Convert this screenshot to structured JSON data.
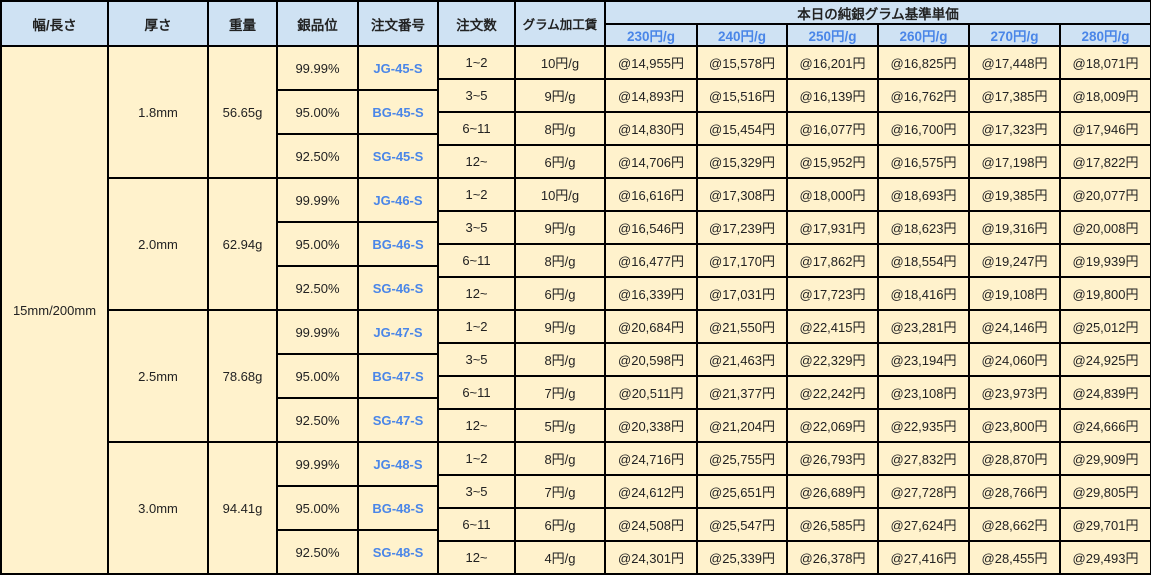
{
  "headers": {
    "width_length": "幅/長さ",
    "thickness": "厚さ",
    "weight": "重量",
    "purity": "銀品位",
    "order_no": "注文番号",
    "order_qty": "注文数",
    "gram_fee": "グラム加工賃",
    "base_price_title": "本日の純銀グラム基準単価",
    "base_prices": [
      "230円/g",
      "240円/g",
      "250円/g",
      "260円/g",
      "270円/g",
      "280円/g"
    ]
  },
  "width_length": "15mm/200mm",
  "colors": {
    "header_bg": "#cfe2f3",
    "body_bg": "#fff2cc",
    "accent_text": "#4a86e8",
    "border": "#000000"
  },
  "groups": [
    {
      "thickness": "1.8mm",
      "weight": "56.65g",
      "purities": [
        {
          "purity": "99.99%",
          "code": "JG-45-S"
        },
        {
          "purity": "95.00%",
          "code": "BG-45-S"
        },
        {
          "purity": "92.50%",
          "code": "SG-45-S"
        }
      ],
      "tiers": [
        {
          "qty": "1~2",
          "fee": "10円/g",
          "prices": [
            "@14,955円",
            "@15,578円",
            "@16,201円",
            "@16,825円",
            "@17,448円",
            "@18,071円"
          ]
        },
        {
          "qty": "3~5",
          "fee": "9円/g",
          "prices": [
            "@14,893円",
            "@15,516円",
            "@16,139円",
            "@16,762円",
            "@17,385円",
            "@18,009円"
          ]
        },
        {
          "qty": "6~11",
          "fee": "8円/g",
          "prices": [
            "@14,830円",
            "@15,454円",
            "@16,077円",
            "@16,700円",
            "@17,323円",
            "@17,946円"
          ]
        },
        {
          "qty": "12~",
          "fee": "6円/g",
          "prices": [
            "@14,706円",
            "@15,329円",
            "@15,952円",
            "@16,575円",
            "@17,198円",
            "@17,822円"
          ]
        }
      ]
    },
    {
      "thickness": "2.0mm",
      "weight": "62.94g",
      "purities": [
        {
          "purity": "99.99%",
          "code": "JG-46-S"
        },
        {
          "purity": "95.00%",
          "code": "BG-46-S"
        },
        {
          "purity": "92.50%",
          "code": "SG-46-S"
        }
      ],
      "tiers": [
        {
          "qty": "1~2",
          "fee": "10円/g",
          "prices": [
            "@16,616円",
            "@17,308円",
            "@18,000円",
            "@18,693円",
            "@19,385円",
            "@20,077円"
          ]
        },
        {
          "qty": "3~5",
          "fee": "9円/g",
          "prices": [
            "@16,546円",
            "@17,239円",
            "@17,931円",
            "@18,623円",
            "@19,316円",
            "@20,008円"
          ]
        },
        {
          "qty": "6~11",
          "fee": "8円/g",
          "prices": [
            "@16,477円",
            "@17,170円",
            "@17,862円",
            "@18,554円",
            "@19,247円",
            "@19,939円"
          ]
        },
        {
          "qty": "12~",
          "fee": "6円/g",
          "prices": [
            "@16,339円",
            "@17,031円",
            "@17,723円",
            "@18,416円",
            "@19,108円",
            "@19,800円"
          ]
        }
      ]
    },
    {
      "thickness": "2.5mm",
      "weight": "78.68g",
      "purities": [
        {
          "purity": "99.99%",
          "code": "JG-47-S"
        },
        {
          "purity": "95.00%",
          "code": "BG-47-S"
        },
        {
          "purity": "92.50%",
          "code": "SG-47-S"
        }
      ],
      "tiers": [
        {
          "qty": "1~2",
          "fee": "9円/g",
          "prices": [
            "@20,684円",
            "@21,550円",
            "@22,415円",
            "@23,281円",
            "@24,146円",
            "@25,012円"
          ]
        },
        {
          "qty": "3~5",
          "fee": "8円/g",
          "prices": [
            "@20,598円",
            "@21,463円",
            "@22,329円",
            "@23,194円",
            "@24,060円",
            "@24,925円"
          ]
        },
        {
          "qty": "6~11",
          "fee": "7円/g",
          "prices": [
            "@20,511円",
            "@21,377円",
            "@22,242円",
            "@23,108円",
            "@23,973円",
            "@24,839円"
          ]
        },
        {
          "qty": "12~",
          "fee": "5円/g",
          "prices": [
            "@20,338円",
            "@21,204円",
            "@22,069円",
            "@22,935円",
            "@23,800円",
            "@24,666円"
          ]
        }
      ]
    },
    {
      "thickness": "3.0mm",
      "weight": "94.41g",
      "purities": [
        {
          "purity": "99.99%",
          "code": "JG-48-S"
        },
        {
          "purity": "95.00%",
          "code": "BG-48-S"
        },
        {
          "purity": "92.50%",
          "code": "SG-48-S"
        }
      ],
      "tiers": [
        {
          "qty": "1~2",
          "fee": "8円/g",
          "prices": [
            "@24,716円",
            "@25,755円",
            "@26,793円",
            "@27,832円",
            "@28,870円",
            "@29,909円"
          ]
        },
        {
          "qty": "3~5",
          "fee": "7円/g",
          "prices": [
            "@24,612円",
            "@25,651円",
            "@26,689円",
            "@27,728円",
            "@28,766円",
            "@29,805円"
          ]
        },
        {
          "qty": "6~11",
          "fee": "6円/g",
          "prices": [
            "@24,508円",
            "@25,547円",
            "@26,585円",
            "@27,624円",
            "@28,662円",
            "@29,701円"
          ]
        },
        {
          "qty": "12~",
          "fee": "4円/g",
          "prices": [
            "@24,301円",
            "@25,339円",
            "@26,378円",
            "@27,416円",
            "@28,455円",
            "@29,493円"
          ]
        }
      ]
    }
  ]
}
